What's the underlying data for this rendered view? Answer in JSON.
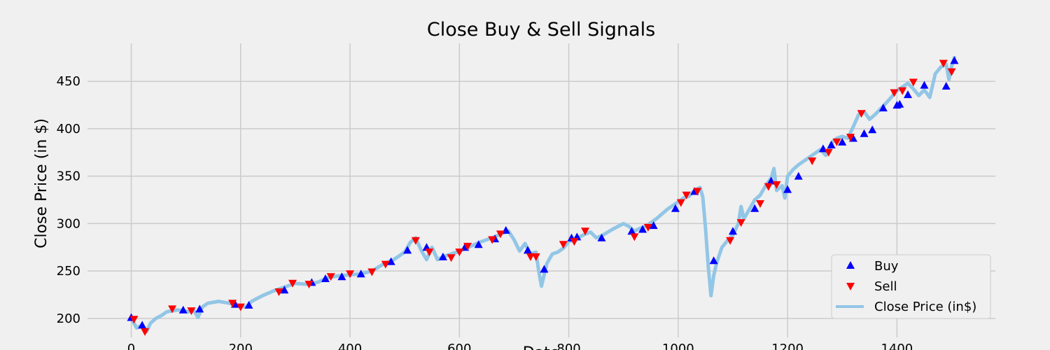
{
  "chart_data": {
    "type": "line",
    "title": "Close Buy & Sell Signals",
    "xlabel": "Date",
    "ylabel": "Close Price (in $)",
    "xlim": [
      -80,
      1580
    ],
    "ylim": [
      180,
      490
    ],
    "xticks": [
      0,
      200,
      400,
      600,
      800,
      1000,
      1200,
      1400
    ],
    "yticks": [
      200,
      250,
      300,
      350,
      400,
      450
    ],
    "grid": true,
    "legend_position": "lower-right",
    "colors": {
      "line": "#92c6e6",
      "buy": "#0000ff",
      "sell": "#ff0000",
      "background": "#f0f0f0",
      "grid": "#cbcbcb"
    },
    "series": [
      {
        "name": "Close Price (in$)",
        "kind": "line",
        "x": [
          0,
          10,
          20,
          28,
          35,
          45,
          55,
          65,
          75,
          85,
          95,
          105,
          115,
          122,
          130,
          140,
          150,
          160,
          170,
          180,
          190,
          200,
          210,
          220,
          240,
          260,
          280,
          300,
          320,
          340,
          360,
          380,
          400,
          420,
          440,
          460,
          480,
          500,
          510,
          520,
          530,
          540,
          550,
          560,
          570,
          580,
          600,
          620,
          640,
          660,
          680,
          690,
          700,
          710,
          720,
          730,
          740,
          745,
          750,
          760,
          770,
          780,
          790,
          800,
          810,
          820,
          830,
          840,
          850,
          860,
          880,
          900,
          910,
          920,
          930,
          940,
          950,
          960,
          980,
          1000,
          1010,
          1020,
          1030,
          1040,
          1045,
          1050,
          1055,
          1060,
          1065,
          1070,
          1080,
          1090,
          1100,
          1110,
          1115,
          1120,
          1130,
          1140,
          1150,
          1160,
          1170,
          1175,
          1180,
          1190,
          1195,
          1200,
          1210,
          1220,
          1240,
          1260,
          1270,
          1280,
          1290,
          1300,
          1310,
          1320,
          1330,
          1340,
          1350,
          1360,
          1380,
          1400,
          1420,
          1430,
          1440,
          1450,
          1460,
          1470,
          1480,
          1490,
          1495,
          1500,
          1505
        ],
        "y": [
          200,
          190,
          193,
          186,
          195,
          200,
          203,
          207,
          208,
          209,
          208,
          207,
          208,
          201,
          212,
          216,
          217,
          218,
          217,
          216,
          214,
          213,
          212,
          218,
          224,
          229,
          233,
          237,
          236,
          238,
          243,
          245,
          246,
          247,
          250,
          257,
          262,
          270,
          280,
          285,
          272,
          262,
          275,
          262,
          265,
          267,
          271,
          276,
          281,
          285,
          290,
          292,
          283,
          271,
          279,
          268,
          270,
          250,
          234,
          258,
          268,
          270,
          274,
          281,
          283,
          286,
          289,
          291,
          285,
          287,
          294,
          300,
          297,
          292,
          295,
          297,
          301,
          305,
          315,
          323,
          327,
          329,
          335,
          338,
          328,
          295,
          255,
          224,
          245,
          258,
          275,
          282,
          288,
          300,
          318,
          305,
          315,
          325,
          330,
          340,
          348,
          358,
          335,
          340,
          327,
          350,
          357,
          362,
          370,
          378,
          372,
          385,
          390,
          392,
          390,
          402,
          415,
          418,
          410,
          415,
          427,
          440,
          448,
          442,
          435,
          441,
          433,
          458,
          465,
          468,
          452,
          466,
          475
        ]
      },
      {
        "name": "Buy",
        "kind": "scatter",
        "x": [
          0,
          20,
          95,
          125,
          190,
          215,
          280,
          330,
          355,
          385,
          420,
          475,
          505,
          540,
          570,
          610,
          635,
          665,
          685,
          725,
          755,
          805,
          815,
          860,
          915,
          935,
          955,
          995,
          1030,
          1065,
          1100,
          1140,
          1170,
          1200,
          1220,
          1265,
          1280,
          1300,
          1320,
          1340,
          1355,
          1375,
          1400,
          1405,
          1420,
          1450,
          1490,
          1505
        ],
        "y": [
          201,
          193,
          209,
          210,
          215,
          214,
          230,
          238,
          242,
          244,
          247,
          260,
          272,
          275,
          265,
          275,
          278,
          284,
          293,
          272,
          252,
          285,
          286,
          285,
          292,
          294,
          298,
          316,
          334,
          261,
          292,
          316,
          345,
          336,
          350,
          379,
          383,
          386,
          390,
          395,
          399,
          422,
          425,
          426,
          436,
          446,
          445,
          472
        ]
      },
      {
        "name": "Sell",
        "kind": "scatter",
        "x": [
          5,
          25,
          75,
          110,
          185,
          200,
          270,
          295,
          325,
          365,
          400,
          440,
          465,
          520,
          545,
          585,
          600,
          615,
          660,
          675,
          730,
          740,
          790,
          810,
          830,
          920,
          945,
          1005,
          1015,
          1035,
          1095,
          1115,
          1150,
          1165,
          1180,
          1245,
          1275,
          1290,
          1315,
          1335,
          1395,
          1410,
          1430,
          1485,
          1500
        ],
        "y": [
          199,
          186,
          210,
          208,
          216,
          212,
          228,
          237,
          236,
          244,
          247,
          249,
          257,
          282,
          270,
          264,
          270,
          276,
          283,
          289,
          265,
          265,
          278,
          281,
          292,
          286,
          296,
          322,
          330,
          334,
          282,
          301,
          321,
          339,
          341,
          366,
          375,
          386,
          391,
          416,
          438,
          440,
          449,
          469,
          460
        ]
      }
    ],
    "legend": [
      "Buy",
      "Sell",
      "Close Price (in$)"
    ]
  }
}
